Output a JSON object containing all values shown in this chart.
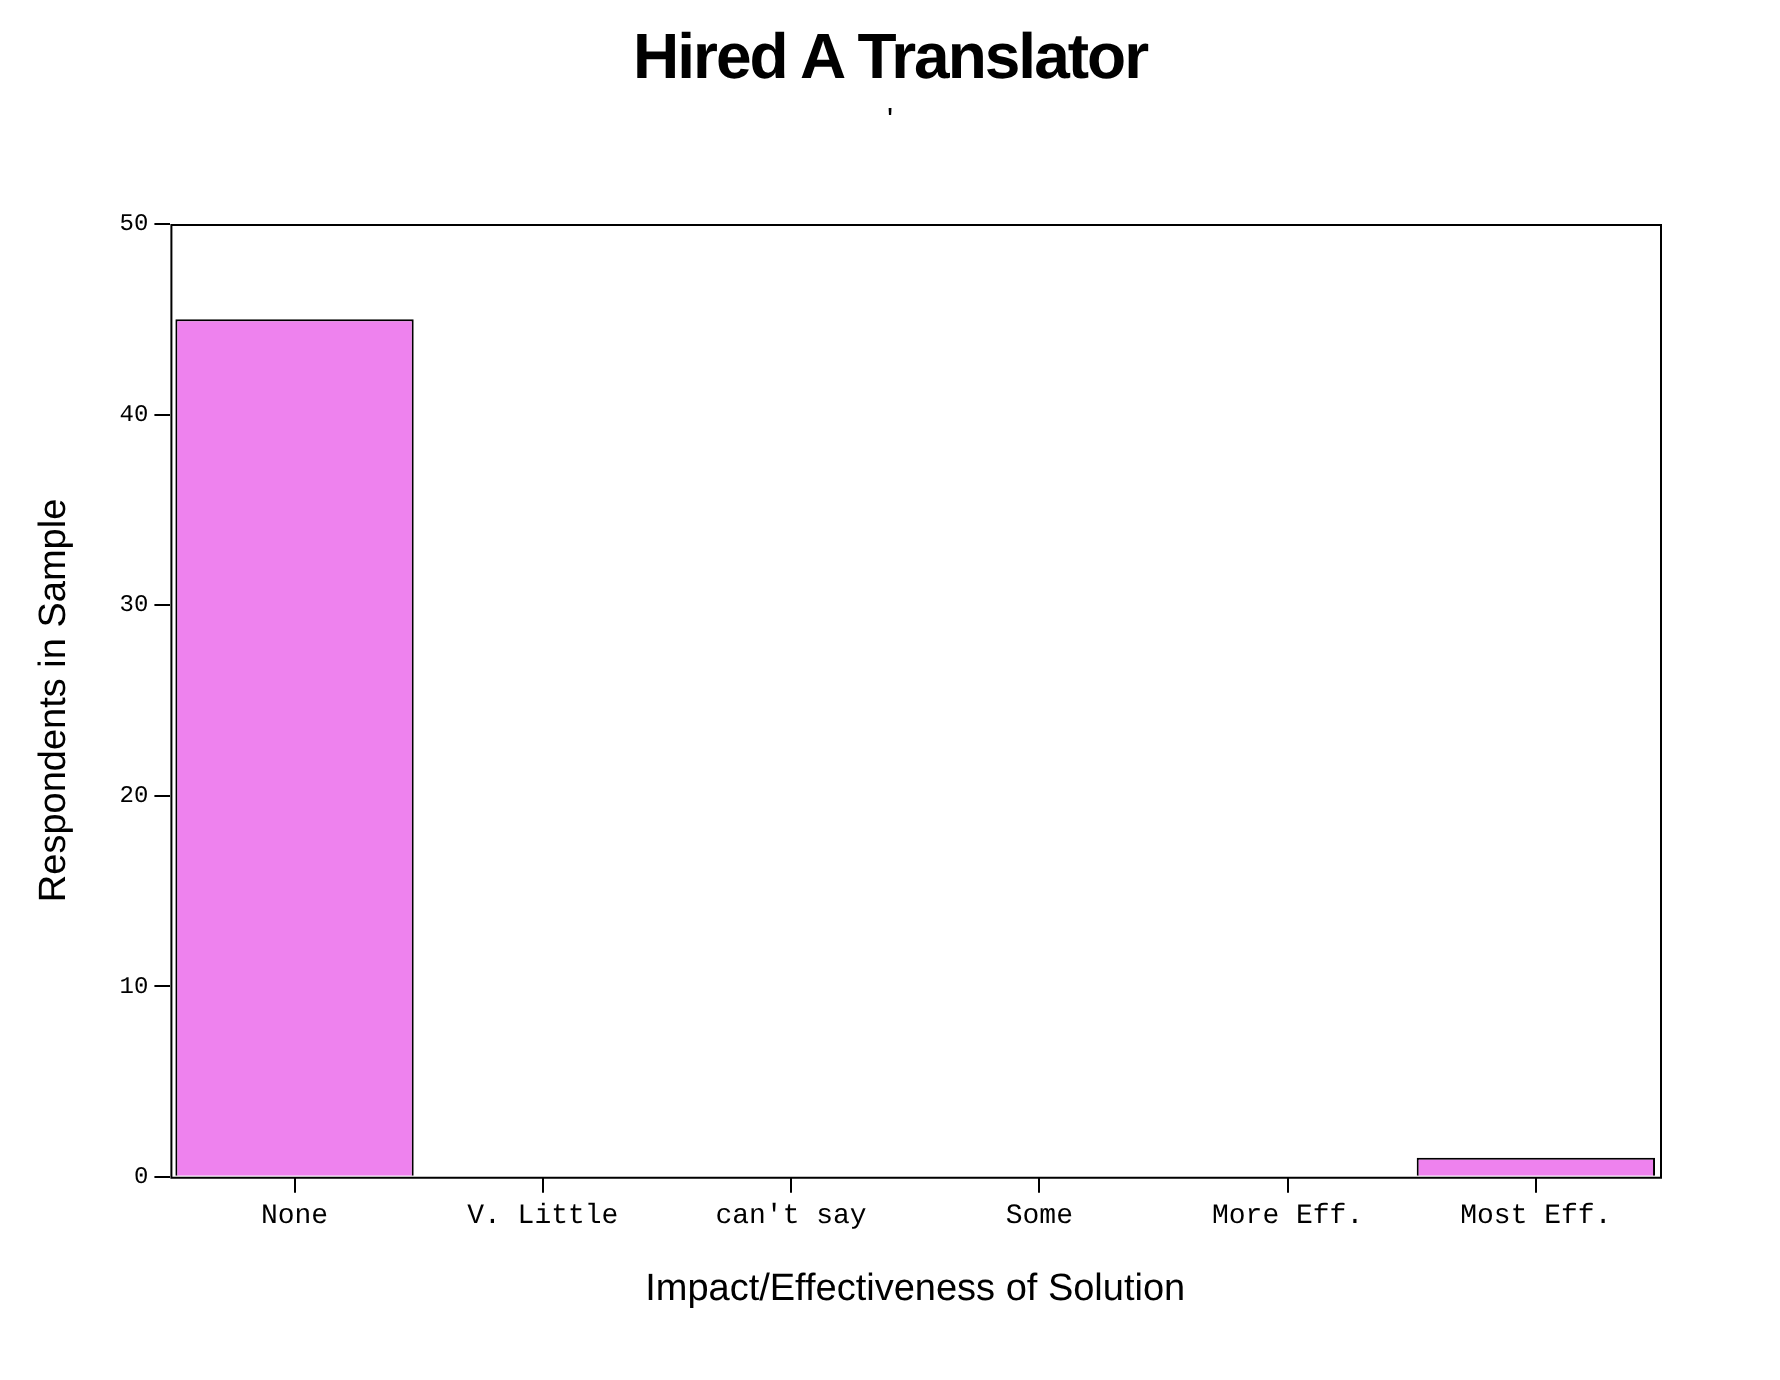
{
  "chart_data": {
    "type": "bar",
    "title": "Hired A Translator",
    "subtitle": "'",
    "xlabel": "Impact/Effectiveness of Solution",
    "ylabel": "Respondents in Sample",
    "categories": [
      "None",
      "V. Little",
      "can't say",
      "Some",
      "More Eff.",
      "Most Eff."
    ],
    "values": [
      45,
      0,
      0,
      0,
      0,
      1
    ],
    "color": "#ee82ee",
    "ylim": [
      0,
      50
    ],
    "yticks": [
      0,
      10,
      20,
      30,
      40,
      50
    ],
    "grid": false,
    "legend": false
  }
}
